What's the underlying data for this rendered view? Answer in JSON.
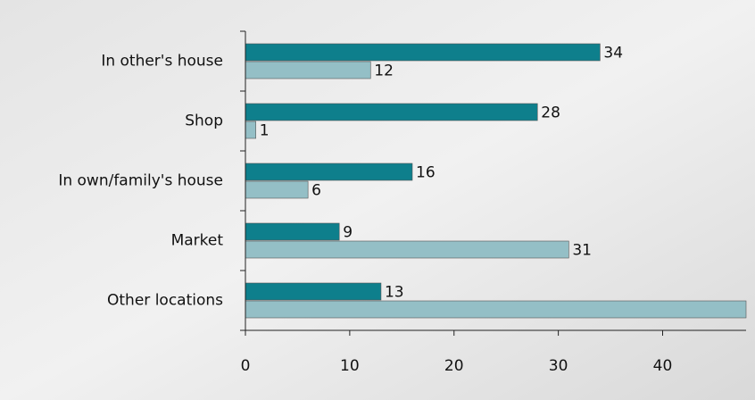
{
  "chart_data": {
    "type": "bar",
    "orientation": "horizontal",
    "categories": [
      "In other's house",
      "Shop",
      "In own/family's house",
      "Market",
      "Other locations"
    ],
    "series": [
      {
        "color": "#0e7f8c",
        "values": [
          34,
          28,
          16,
          9,
          13
        ]
      },
      {
        "color": "#94bfc6",
        "values": [
          12,
          1,
          6,
          31,
          48
        ]
      }
    ],
    "xlim": [
      0,
      48
    ],
    "xticks": [
      0,
      10,
      20,
      30,
      40
    ]
  }
}
